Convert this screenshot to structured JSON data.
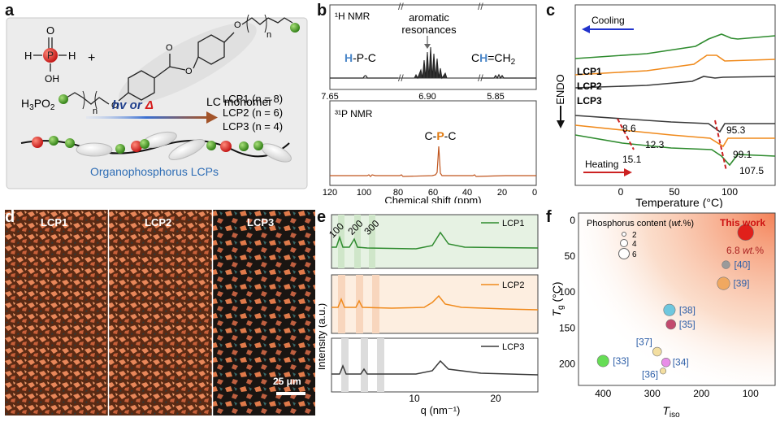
{
  "panel_labels": {
    "a": "a",
    "b": "b",
    "c": "c",
    "d": "d",
    "e": "e",
    "f": "f"
  },
  "panel_a": {
    "h3po2_formula": "H3PO2",
    "h3po2_atoms": {
      "p": "P",
      "h": "H",
      "o": "O",
      "oh": "OH"
    },
    "plus": "+",
    "monomer_label": "LC monomer",
    "subscript_n": "n",
    "arrow_text": "hv or Δ",
    "arrow_hv": "hv or ",
    "arrow_delta": "Δ",
    "products": [
      "LCP1 (n = 8)",
      "LCP2 (n = 6)",
      "LCP3 (n = 4)"
    ],
    "caption": "Organophosphorus LCPs",
    "colors": {
      "box_bg": "#ececec",
      "red": "#d51b1b",
      "green": "#3b8a1f",
      "blue_text": "#2e6db5",
      "arrow_start": "#3a6fd1",
      "arrow_end": "#a3542a"
    }
  },
  "panel_b": {
    "h_nmr_title": "¹H NMR",
    "h_nmr_peaks": {
      "hpc": "H-P-C",
      "aromatic_1": "aromatic",
      "aromatic_2": "resonances",
      "vinyl": "CH=CH2"
    },
    "h_ticks": [
      "7.65",
      "6.90",
      "5.85"
    ],
    "p_nmr_title": "³¹P NMR",
    "p_peak_label": "C-P-C",
    "x_ticks": [
      "120",
      "100",
      "80",
      "60",
      "40",
      "20",
      "0"
    ],
    "x_label": "Chemical shift (ppm)",
    "colors": {
      "h_blue": "#4a86c8",
      "p_orange": "#e07a10",
      "trace": "#c0561f"
    }
  },
  "panel_c": {
    "cooling_label": "Cooling",
    "heating_label": "Heating",
    "y_label": "ENDO",
    "series": [
      "LCP1",
      "LCP2",
      "LCP3"
    ],
    "annotations": [
      "8.6",
      "12.3",
      "15.1",
      "95.3",
      "99.1",
      "107.5"
    ],
    "x_ticks": [
      "0",
      "50",
      "100"
    ],
    "x_label": "Temperature (°C)",
    "colors": {
      "LCP1": "#2e8b2e",
      "LCP2": "#f08a1c",
      "LCP3": "#3a3a3a",
      "dash": "#cc2222",
      "cooling_arrow": "#2233cc",
      "heating_arrow": "#cc2222"
    }
  },
  "panel_d": {
    "tiles": [
      "LCP1",
      "LCP2",
      "LCP3"
    ],
    "scale_bar": "25 μm"
  },
  "panel_e": {
    "series": [
      "LCP1",
      "LCP2",
      "LCP3"
    ],
    "peak_labels": [
      "100",
      "200",
      "300"
    ],
    "y_label": "Intensity (a.u.)",
    "x_ticks": [
      "10",
      "20"
    ],
    "x_label": "q (nm⁻¹)",
    "colors": {
      "LCP1": "#2e8b2e",
      "LCP2": "#f08a1c",
      "LCP3": "#3a3a3a",
      "bg1": "#e6f2e3",
      "bg2": "#fdeee0",
      "bg3": "#ffffff"
    }
  },
  "panel_f": {
    "legend_title": "Phosphorus content (wt.%)",
    "legend_sizes": [
      "2",
      "4",
      "6"
    ],
    "this_work": "This work",
    "this_work_value": "6.8 wt.%",
    "x_label": "Tiso",
    "y_label": "Tg",
    "x_ticks": [
      "400",
      "300",
      "200",
      "100"
    ],
    "y_ticks": [
      "0",
      "50",
      "100",
      "150",
      "200"
    ]
  },
  "chart_data": [
    {
      "type": "scatter",
      "title": "",
      "xlabel": "T_iso",
      "ylabel": "T_g (°C)",
      "xlim": [
        450,
        50
      ],
      "ylim": [
        -10,
        230
      ],
      "x_reversed": true,
      "y_reversed": true,
      "series": [
        {
          "name": "This work",
          "x": [
            110
          ],
          "y": [
            17
          ],
          "size_wt_pct": 6.8,
          "color": "#e0201b"
        },
        {
          "name": "[40]",
          "x": [
            150
          ],
          "y": [
            62
          ],
          "size_wt_pct": 2.5,
          "color": "#9a9a9a"
        },
        {
          "name": "[39]",
          "x": [
            155
          ],
          "y": [
            88
          ],
          "size_wt_pct": 5.0,
          "color": "#f0a860"
        },
        {
          "name": "[38]",
          "x": [
            265
          ],
          "y": [
            125
          ],
          "size_wt_pct": 4.5,
          "color": "#6fc7de"
        },
        {
          "name": "[35]",
          "x": [
            262
          ],
          "y": [
            145
          ],
          "size_wt_pct": 3.5,
          "color": "#c24a6e"
        },
        {
          "name": "[37]",
          "x": [
            290
          ],
          "y": [
            183
          ],
          "size_wt_pct": 3.0,
          "color": "#f3dea0"
        },
        {
          "name": "[34]",
          "x": [
            272
          ],
          "y": [
            198
          ],
          "size_wt_pct": 3.0,
          "color": "#e88de8"
        },
        {
          "name": "[36]",
          "x": [
            278
          ],
          "y": [
            210
          ],
          "size_wt_pct": 1.5,
          "color": "#f3dea0"
        },
        {
          "name": "[33]",
          "x": [
            400
          ],
          "y": [
            196
          ],
          "size_wt_pct": 4.5,
          "color": "#66dd55"
        }
      ]
    },
    {
      "type": "line",
      "title": "",
      "xlabel": "q (nm⁻¹)",
      "ylabel": "Intensity (a.u.)",
      "xlim": [
        1,
        25
      ],
      "series": [
        {
          "name": "LCP1",
          "peaks_q": [
            1.6,
            3.2,
            4.8,
            14.2
          ]
        },
        {
          "name": "LCP2",
          "peaks_q": [
            1.8,
            3.6,
            5.4,
            13.9
          ]
        },
        {
          "name": "LCP3",
          "peaks_q": [
            2.0,
            4.0,
            6.0,
            13.8
          ]
        }
      ]
    },
    {
      "type": "line",
      "title": "",
      "xlabel": "Temperature (°C)",
      "ylabel": "ENDO",
      "xlim": [
        -45,
        145
      ],
      "series": [
        {
          "name": "LCP1",
          "cooling_peak_c": 88,
          "tg_c": 15.1,
          "tm_c": 107.5
        },
        {
          "name": "LCP2",
          "cooling_peak_c": 85,
          "tg_c": 12.3,
          "tm_c": 99.1
        },
        {
          "name": "LCP3",
          "cooling_peak_c": 80,
          "tg_c": 8.6,
          "tm_c": 95.3
        }
      ]
    }
  ]
}
